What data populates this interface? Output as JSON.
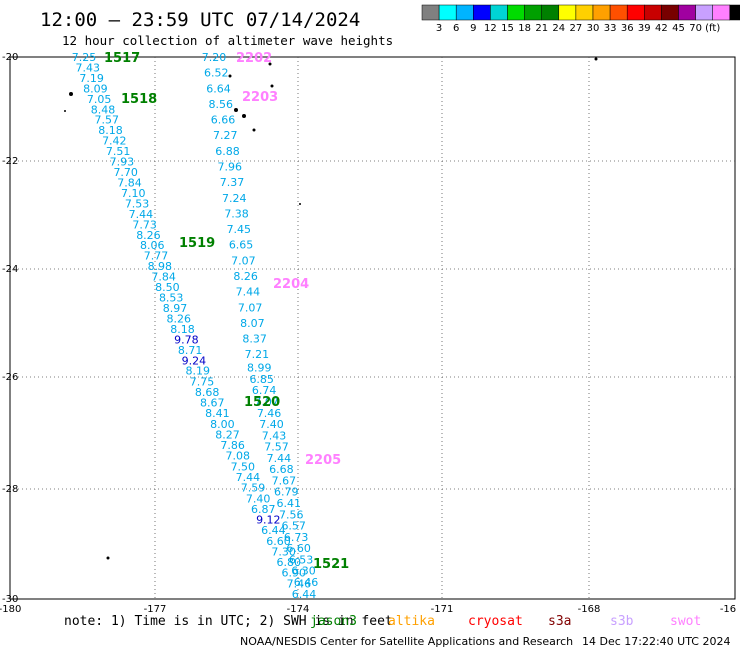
{
  "title": "12:00 — 23:59 UTC 07/14/2024",
  "subtitle": "12 hour collection of altimeter wave heights",
  "colorbar": {
    "colors": [
      "#808080",
      "#00ffff",
      "#00b4ff",
      "#0000ff",
      "#00d4d4",
      "#00dc00",
      "#00a000",
      "#008000",
      "#ffff00",
      "#ffd000",
      "#ffa000",
      "#ff5000",
      "#ff0000",
      "#c80000",
      "#780000",
      "#a000a0",
      "#c8a0ff",
      "#ff80ff",
      "#000000"
    ],
    "labels": [
      "3",
      "6",
      "9",
      "12",
      "15",
      "18",
      "21",
      "24",
      "27",
      "30",
      "33",
      "36",
      "39",
      "42",
      "45",
      "70",
      "(ft)"
    ]
  },
  "axes": {
    "x_ticks": [
      "-180",
      "-177",
      "-174",
      "-171",
      "-168",
      "-16"
    ],
    "y_ticks": [
      "-20",
      "-22",
      "-24",
      "-26",
      "-28",
      "-30"
    ]
  },
  "tracks": [
    {
      "label": "1517",
      "color": "#008000"
    },
    {
      "label": "1518",
      "color": "#008000"
    },
    {
      "label": "1519",
      "color": "#008000"
    },
    {
      "label": "1520",
      "color": "#008000"
    },
    {
      "label": "1521",
      "color": "#008000"
    },
    {
      "label": "2202",
      "color": "#ff80ff"
    },
    {
      "label": "2203",
      "color": "#ff80ff"
    },
    {
      "label": "2204",
      "color": "#ff80ff"
    },
    {
      "label": "2205",
      "color": "#ff80ff"
    }
  ],
  "track_a_values": [
    "7.25",
    "7.43",
    "7.19",
    "8.09",
    "7.05",
    "8.48",
    "7.57",
    "8.18",
    "7.42",
    "7.51",
    "7.93",
    "7.70",
    "7.84",
    "7.10",
    "7.53",
    "7.44",
    "7.73",
    "8.26",
    "8.06",
    "7.77",
    "8.98",
    "7.84",
    "8.50",
    "8.53",
    "8.97",
    "8.26",
    "8.18",
    "9.78",
    "8.71",
    "9.24",
    "8.19",
    "7.75",
    "8.68",
    "8.67",
    "8.41",
    "8.00",
    "8.27",
    "7.86",
    "7.08",
    "7.50",
    "7.44",
    "7.59",
    "7.40",
    "6.87",
    "9.12",
    "6.44",
    "6.60",
    "7.30",
    "6.80",
    "6.90",
    "7.46",
    "6.44"
  ],
  "track_b_values": [
    "7.20",
    "6.52",
    "6.64",
    "8.56",
    "6.66",
    "7.27",
    "6.88",
    "7.96",
    "7.37",
    "7.24",
    "7.38",
    "7.45",
    "6.65",
    "7.07",
    "8.26",
    "7.44",
    "7.07",
    "8.07",
    "8.37",
    "7.21",
    "8.99",
    "6.85",
    "6.74",
    "7.07",
    "7.46",
    "7.40",
    "7.43",
    "7.57",
    "7.44",
    "6.68",
    "7.67",
    "6.79",
    "6.41",
    "7.56",
    "6.57",
    "6.73",
    "6.60",
    "6.53",
    "6.30",
    "6.46"
  ],
  "legend": {
    "note": "note: 1) Time is in UTC; 2) SWH is in feet",
    "missions": [
      {
        "name": "jason3",
        "color": "#008000"
      },
      {
        "name": "altika",
        "color": "#ffa000"
      },
      {
        "name": "cryosat",
        "color": "#ff0000"
      },
      {
        "name": "s3a",
        "color": "#800000"
      },
      {
        "name": "s3b",
        "color": "#c8a0ff"
      },
      {
        "name": "swot",
        "color": "#ff80ff"
      }
    ]
  },
  "footer": {
    "credit": "NOAA/NESDIS Center for Satellite Applications and Research",
    "timestamp": "14 Dec 17:22:40 UTC 2024"
  }
}
